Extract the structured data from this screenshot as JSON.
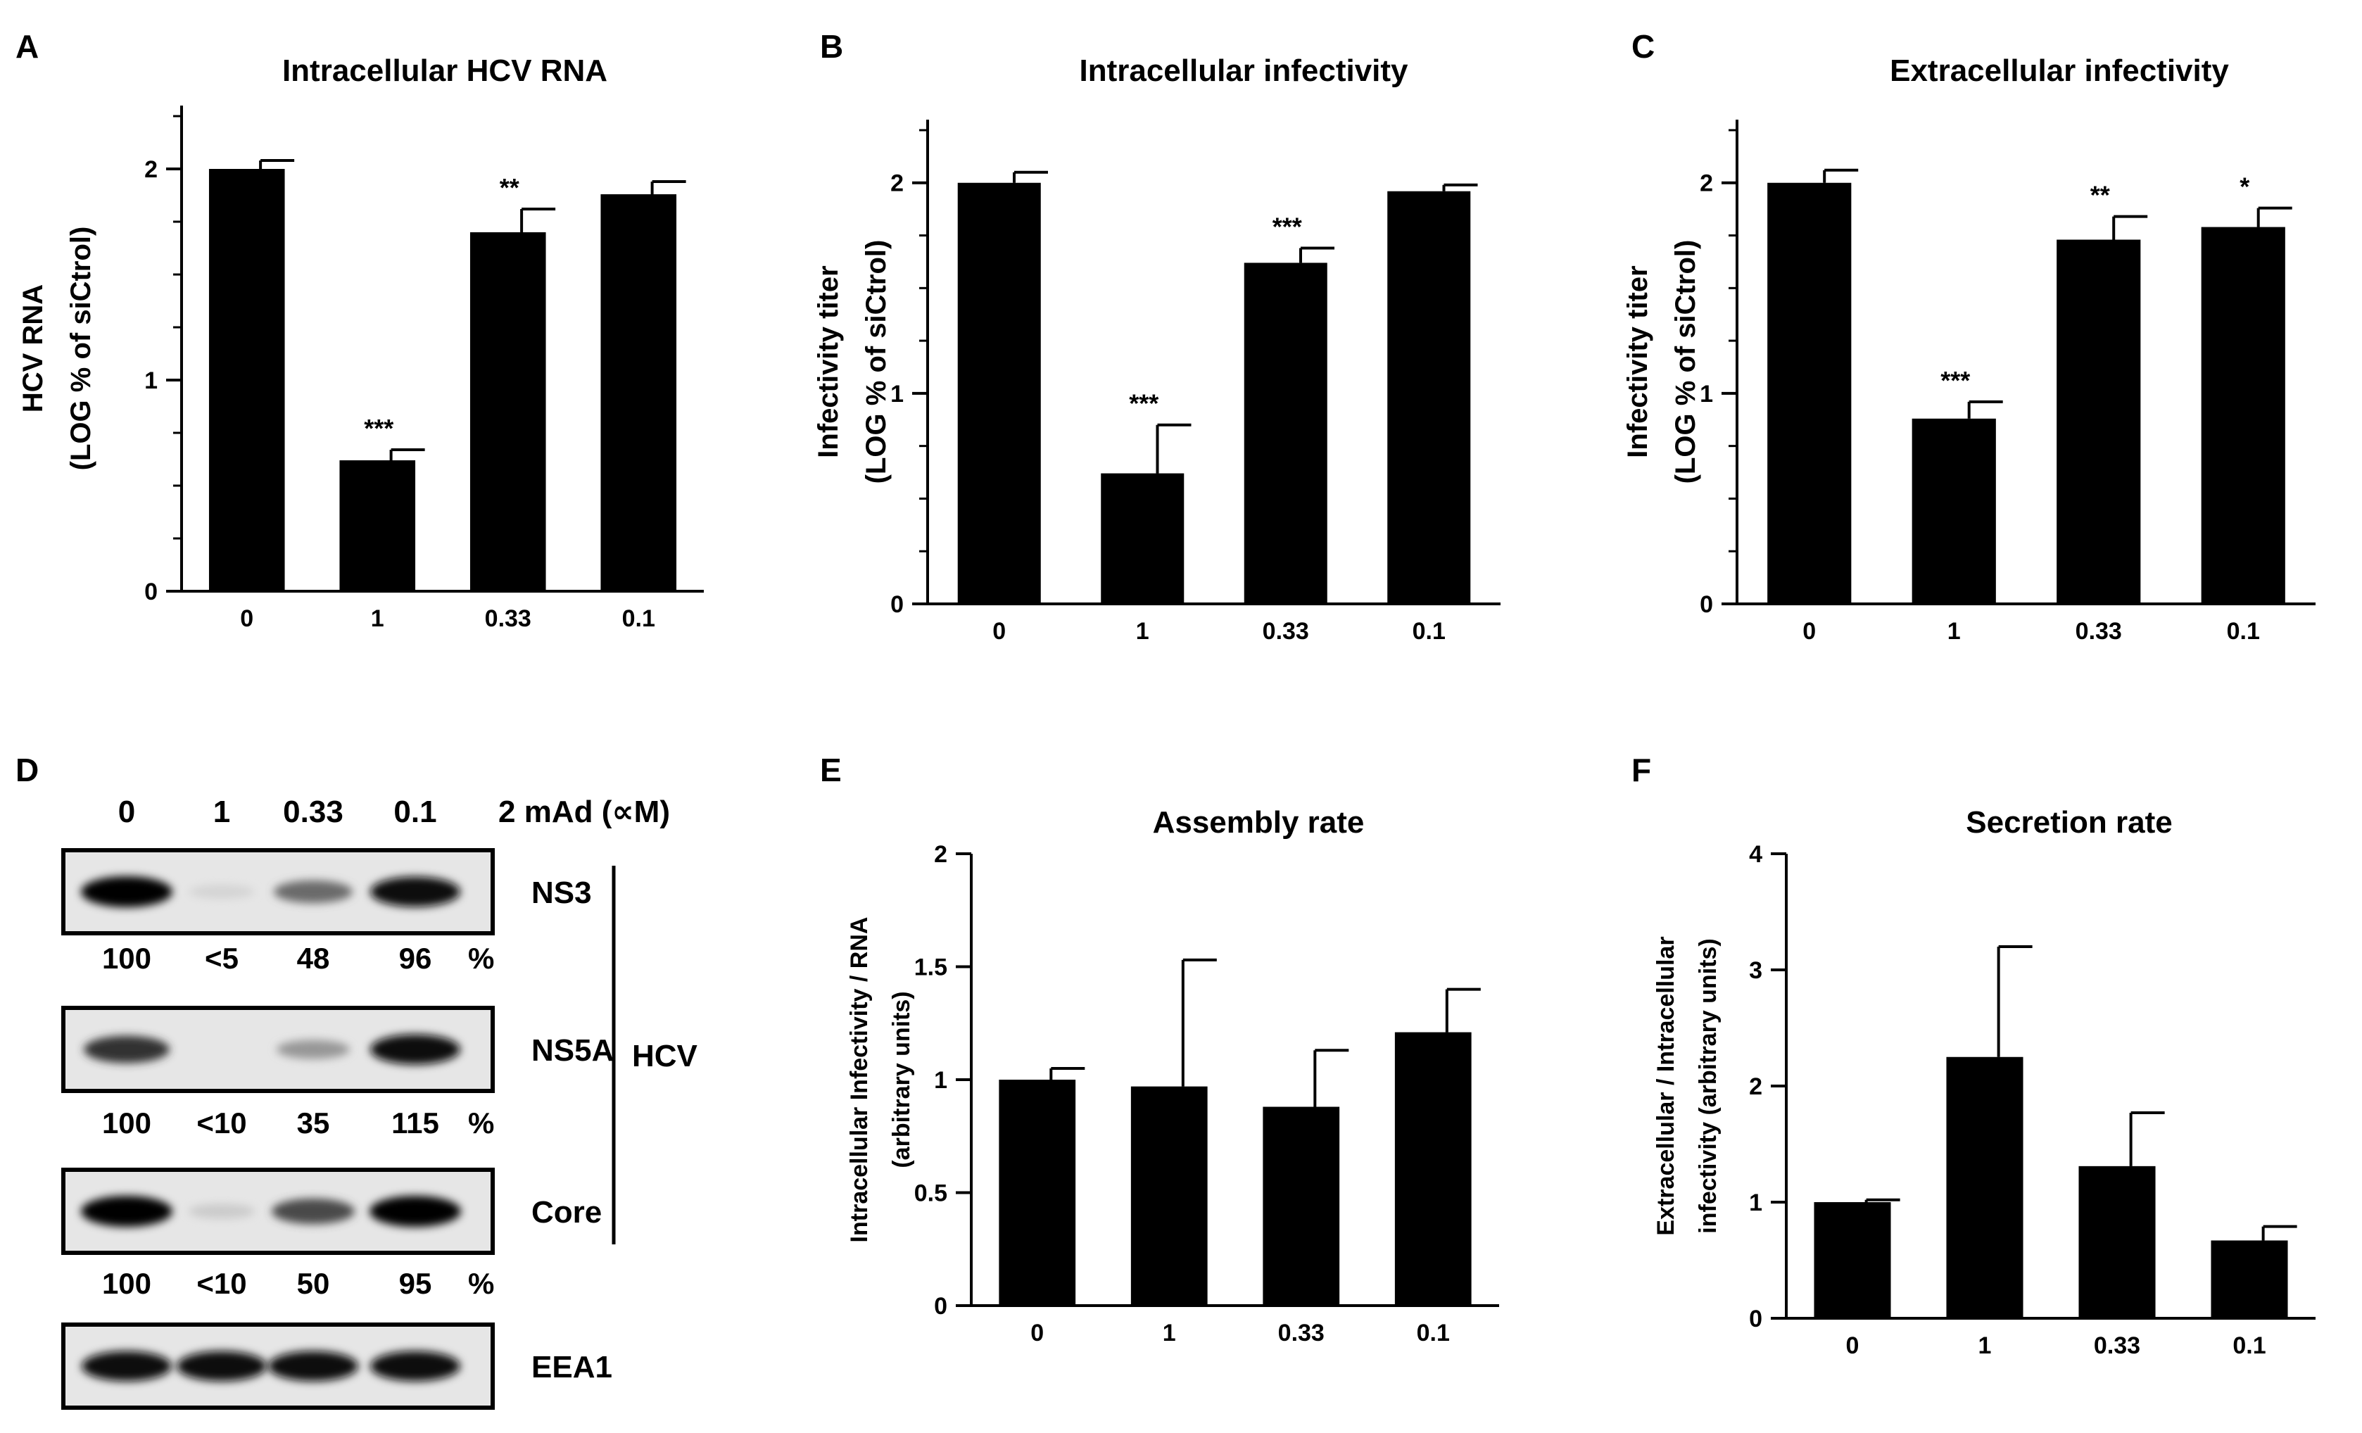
{
  "panels": {
    "A": {
      "letter": "A"
    },
    "B": {
      "letter": "B"
    },
    "C": {
      "letter": "C"
    },
    "D": {
      "letter": "D"
    },
    "E": {
      "letter": "E"
    },
    "F": {
      "letter": "F"
    }
  },
  "chart_data": [
    {
      "id": "A",
      "type": "bar",
      "title": "Intracellular HCV RNA",
      "ylabel_lines": [
        "HCV RNA",
        "(LOG % of siCtrol)"
      ],
      "categories": [
        "0",
        "1",
        "0.33",
        "0.1"
      ],
      "values": [
        2.0,
        0.62,
        1.7,
        1.88
      ],
      "errors": [
        0.04,
        0.05,
        0.11,
        0.06
      ],
      "significance": [
        "",
        "***",
        "**",
        ""
      ],
      "ylim": [
        0,
        2.3
      ],
      "yticks": [
        "0",
        "1",
        "2"
      ],
      "ytick_values": [
        0,
        1,
        2
      ],
      "minor_step": 0.25
    },
    {
      "id": "B",
      "type": "bar",
      "title": "Intracellular infectivity",
      "ylabel_lines": [
        "Infectivity titer",
        "(LOG % of siCtrol)"
      ],
      "categories": [
        "0",
        "1",
        "0.33",
        "0.1"
      ],
      "values": [
        2.0,
        0.62,
        1.62,
        1.96
      ],
      "errors": [
        0.05,
        0.23,
        0.07,
        0.03
      ],
      "significance": [
        "",
        "***",
        "***",
        ""
      ],
      "ylim": [
        0,
        2.3
      ],
      "yticks": [
        "0",
        "1",
        "2"
      ],
      "ytick_values": [
        0,
        1,
        2
      ],
      "minor_step": 0.25
    },
    {
      "id": "C",
      "type": "bar",
      "title": "Extracellular infectivity",
      "ylabel_lines": [
        "Infectivity titer",
        "(LOG % of siCtrol)"
      ],
      "categories": [
        "0",
        "1",
        "0.33",
        "0.1"
      ],
      "values": [
        2.0,
        0.88,
        1.73,
        1.79
      ],
      "errors": [
        0.06,
        0.08,
        0.11,
        0.09
      ],
      "significance": [
        "",
        "***",
        "**",
        "*"
      ],
      "ylim": [
        0,
        2.3
      ],
      "yticks": [
        "0",
        "1",
        "2"
      ],
      "ytick_values": [
        0,
        1,
        2
      ],
      "minor_step": 0.25
    },
    {
      "id": "E",
      "type": "bar",
      "title": "Assembly rate",
      "ylabel_lines": [
        "Intracellular Infectivity / RNA",
        "(arbitrary units)"
      ],
      "categories": [
        "0",
        "1",
        "0.33",
        "0.1"
      ],
      "values": [
        1.0,
        0.97,
        0.88,
        1.21
      ],
      "errors": [
        0.05,
        0.56,
        0.25,
        0.19
      ],
      "significance": [
        "",
        "",
        "",
        ""
      ],
      "ylim": [
        0,
        2
      ],
      "yticks": [
        "0",
        "0.5",
        "1",
        "1.5",
        "2"
      ],
      "ytick_values": [
        0,
        0.5,
        1,
        1.5,
        2
      ],
      "minor_step": 0
    },
    {
      "id": "F",
      "type": "bar",
      "title": "Secretion rate",
      "ylabel_lines": [
        "Extracellular / Intracellular",
        "infectivity (arbitrary units)"
      ],
      "categories": [
        "0",
        "1",
        "0.33",
        "0.1"
      ],
      "values": [
        1.0,
        2.25,
        1.31,
        0.67
      ],
      "errors": [
        0.02,
        0.95,
        0.46,
        0.12
      ],
      "significance": [
        "",
        "",
        "",
        ""
      ],
      "ylim": [
        0,
        4
      ],
      "yticks": [
        "0",
        "1",
        "2",
        "3",
        "4"
      ],
      "ytick_values": [
        0,
        1,
        2,
        3,
        4
      ],
      "minor_step": 0
    }
  ],
  "blot": {
    "header": [
      "0",
      "1",
      "0.33",
      "0.1"
    ],
    "condition_label": "2 mAd (∝M)",
    "bands": [
      {
        "name": "NS3",
        "intensities": [
          1.0,
          0.08,
          0.55,
          0.95
        ],
        "quant": [
          "100",
          "<5",
          "48",
          "96"
        ],
        "unit": "%"
      },
      {
        "name": "NS5A",
        "intensities": [
          0.8,
          0.0,
          0.35,
          0.95
        ],
        "quant": [
          "100",
          "<10",
          "35",
          "115"
        ],
        "unit": "%"
      },
      {
        "name": "Core",
        "intensities": [
          1.0,
          0.12,
          0.7,
          1.0
        ],
        "quant": [
          "100",
          "<10",
          "50",
          "95"
        ],
        "unit": "%"
      },
      {
        "name": "EEA1",
        "intensities": [
          0.95,
          0.95,
          0.95,
          0.95
        ],
        "quant": [],
        "unit": ""
      }
    ],
    "group_label": "HCV"
  }
}
